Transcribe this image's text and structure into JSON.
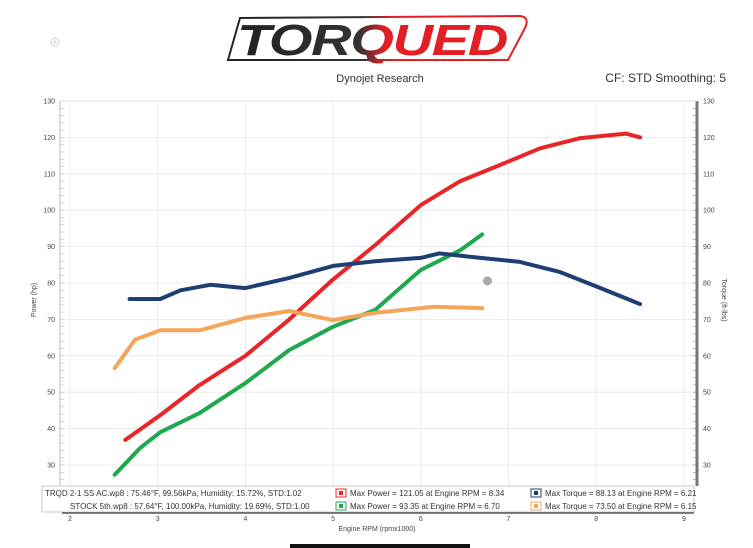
{
  "header": {
    "logo_text": "TORQUED",
    "subtitle": "Dynojet Research",
    "settings": "CF: STD Smoothing: 5",
    "zoom_icon": "zoom-in-icon"
  },
  "chart_data": {
    "type": "line",
    "xlabel": "Engine RPM (rpmx1000)",
    "ylabel_left": "Power (hp)",
    "ylabel_right": "Torque (ft-lbs)",
    "xlim": [
      2,
      9
    ],
    "ylim": [
      25,
      130
    ],
    "x_ticks": [
      "2",
      "3",
      "4",
      "5",
      "6",
      "7",
      "8",
      "9"
    ],
    "y_ticks": [
      "30",
      "40",
      "50",
      "60",
      "70",
      "80",
      "90",
      "100",
      "110",
      "120",
      "130"
    ],
    "grid": true,
    "colors": {
      "trqd_power": "#e8262a",
      "stock_power": "#1fa84f",
      "trqd_torque": "#1f3f74",
      "stock_torque": "#f5a55a"
    },
    "series": [
      {
        "key": "trqd_power",
        "axis": "left",
        "x": [
          2.63,
          3.03,
          3.48,
          4.0,
          4.5,
          5.0,
          5.48,
          6.0,
          6.45,
          6.9,
          7.36,
          7.82,
          8.34,
          8.5
        ],
        "y": [
          36.9,
          43.7,
          52,
          60,
          70,
          81,
          90.4,
          101.4,
          108,
          112.4,
          117,
          119.8,
          121.05,
          120
        ]
      },
      {
        "key": "stock_power",
        "axis": "left",
        "x": [
          2.51,
          2.8,
          3.03,
          3.48,
          4.0,
          4.5,
          5.0,
          5.48,
          6.0,
          6.45,
          6.7
        ],
        "y": [
          27.3,
          34.7,
          39,
          44.3,
          52.5,
          61.6,
          68,
          72.6,
          83.6,
          89,
          93.35
        ]
      },
      {
        "key": "trqd_torque",
        "axis": "right",
        "x": [
          2.68,
          3.03,
          3.26,
          3.6,
          4.0,
          4.5,
          5.0,
          5.48,
          6.0,
          6.21,
          6.68,
          7.13,
          7.59,
          8.05,
          8.5
        ],
        "y": [
          75.6,
          75.6,
          78,
          79.5,
          78.6,
          81.4,
          84.7,
          86,
          86.9,
          88.13,
          86.9,
          85.8,
          83,
          78.6,
          74.2
        ]
      },
      {
        "key": "stock_torque",
        "axis": "right",
        "x": [
          2.51,
          2.74,
          3.03,
          3.48,
          4.0,
          4.5,
          5.0,
          5.48,
          6.15,
          6.7
        ],
        "y": [
          56.6,
          64.4,
          67,
          67,
          70.4,
          72.3,
          69.8,
          71.8,
          73.5,
          73.1
        ]
      }
    ],
    "marker": {
      "x": 6.76,
      "y": 80.6,
      "color": "#aaaaaa"
    },
    "legend": {
      "placement": "bottom",
      "rows": [
        {
          "file": "TRQD 2-1 SS AC.wp8",
          "conditions": " : 75.46°F, 99.56kPa, Humidity: 15.72%, STD:1.02",
          "power": "Max Power = 121.05 at Engine RPM = 8.34",
          "torque": "Max Torque = 88.13 at Engine RPM = 6.21"
        },
        {
          "file": "STOCK 5th.wp8",
          "conditions": " : 57.64°F, 100.00kPa, Humidity: 19.69%, STD:1.00",
          "power": "Max Power = 93.35 at Engine RPM = 6.70",
          "torque": "Max Torque = 73.50 at Engine RPM = 6.15"
        }
      ]
    }
  }
}
